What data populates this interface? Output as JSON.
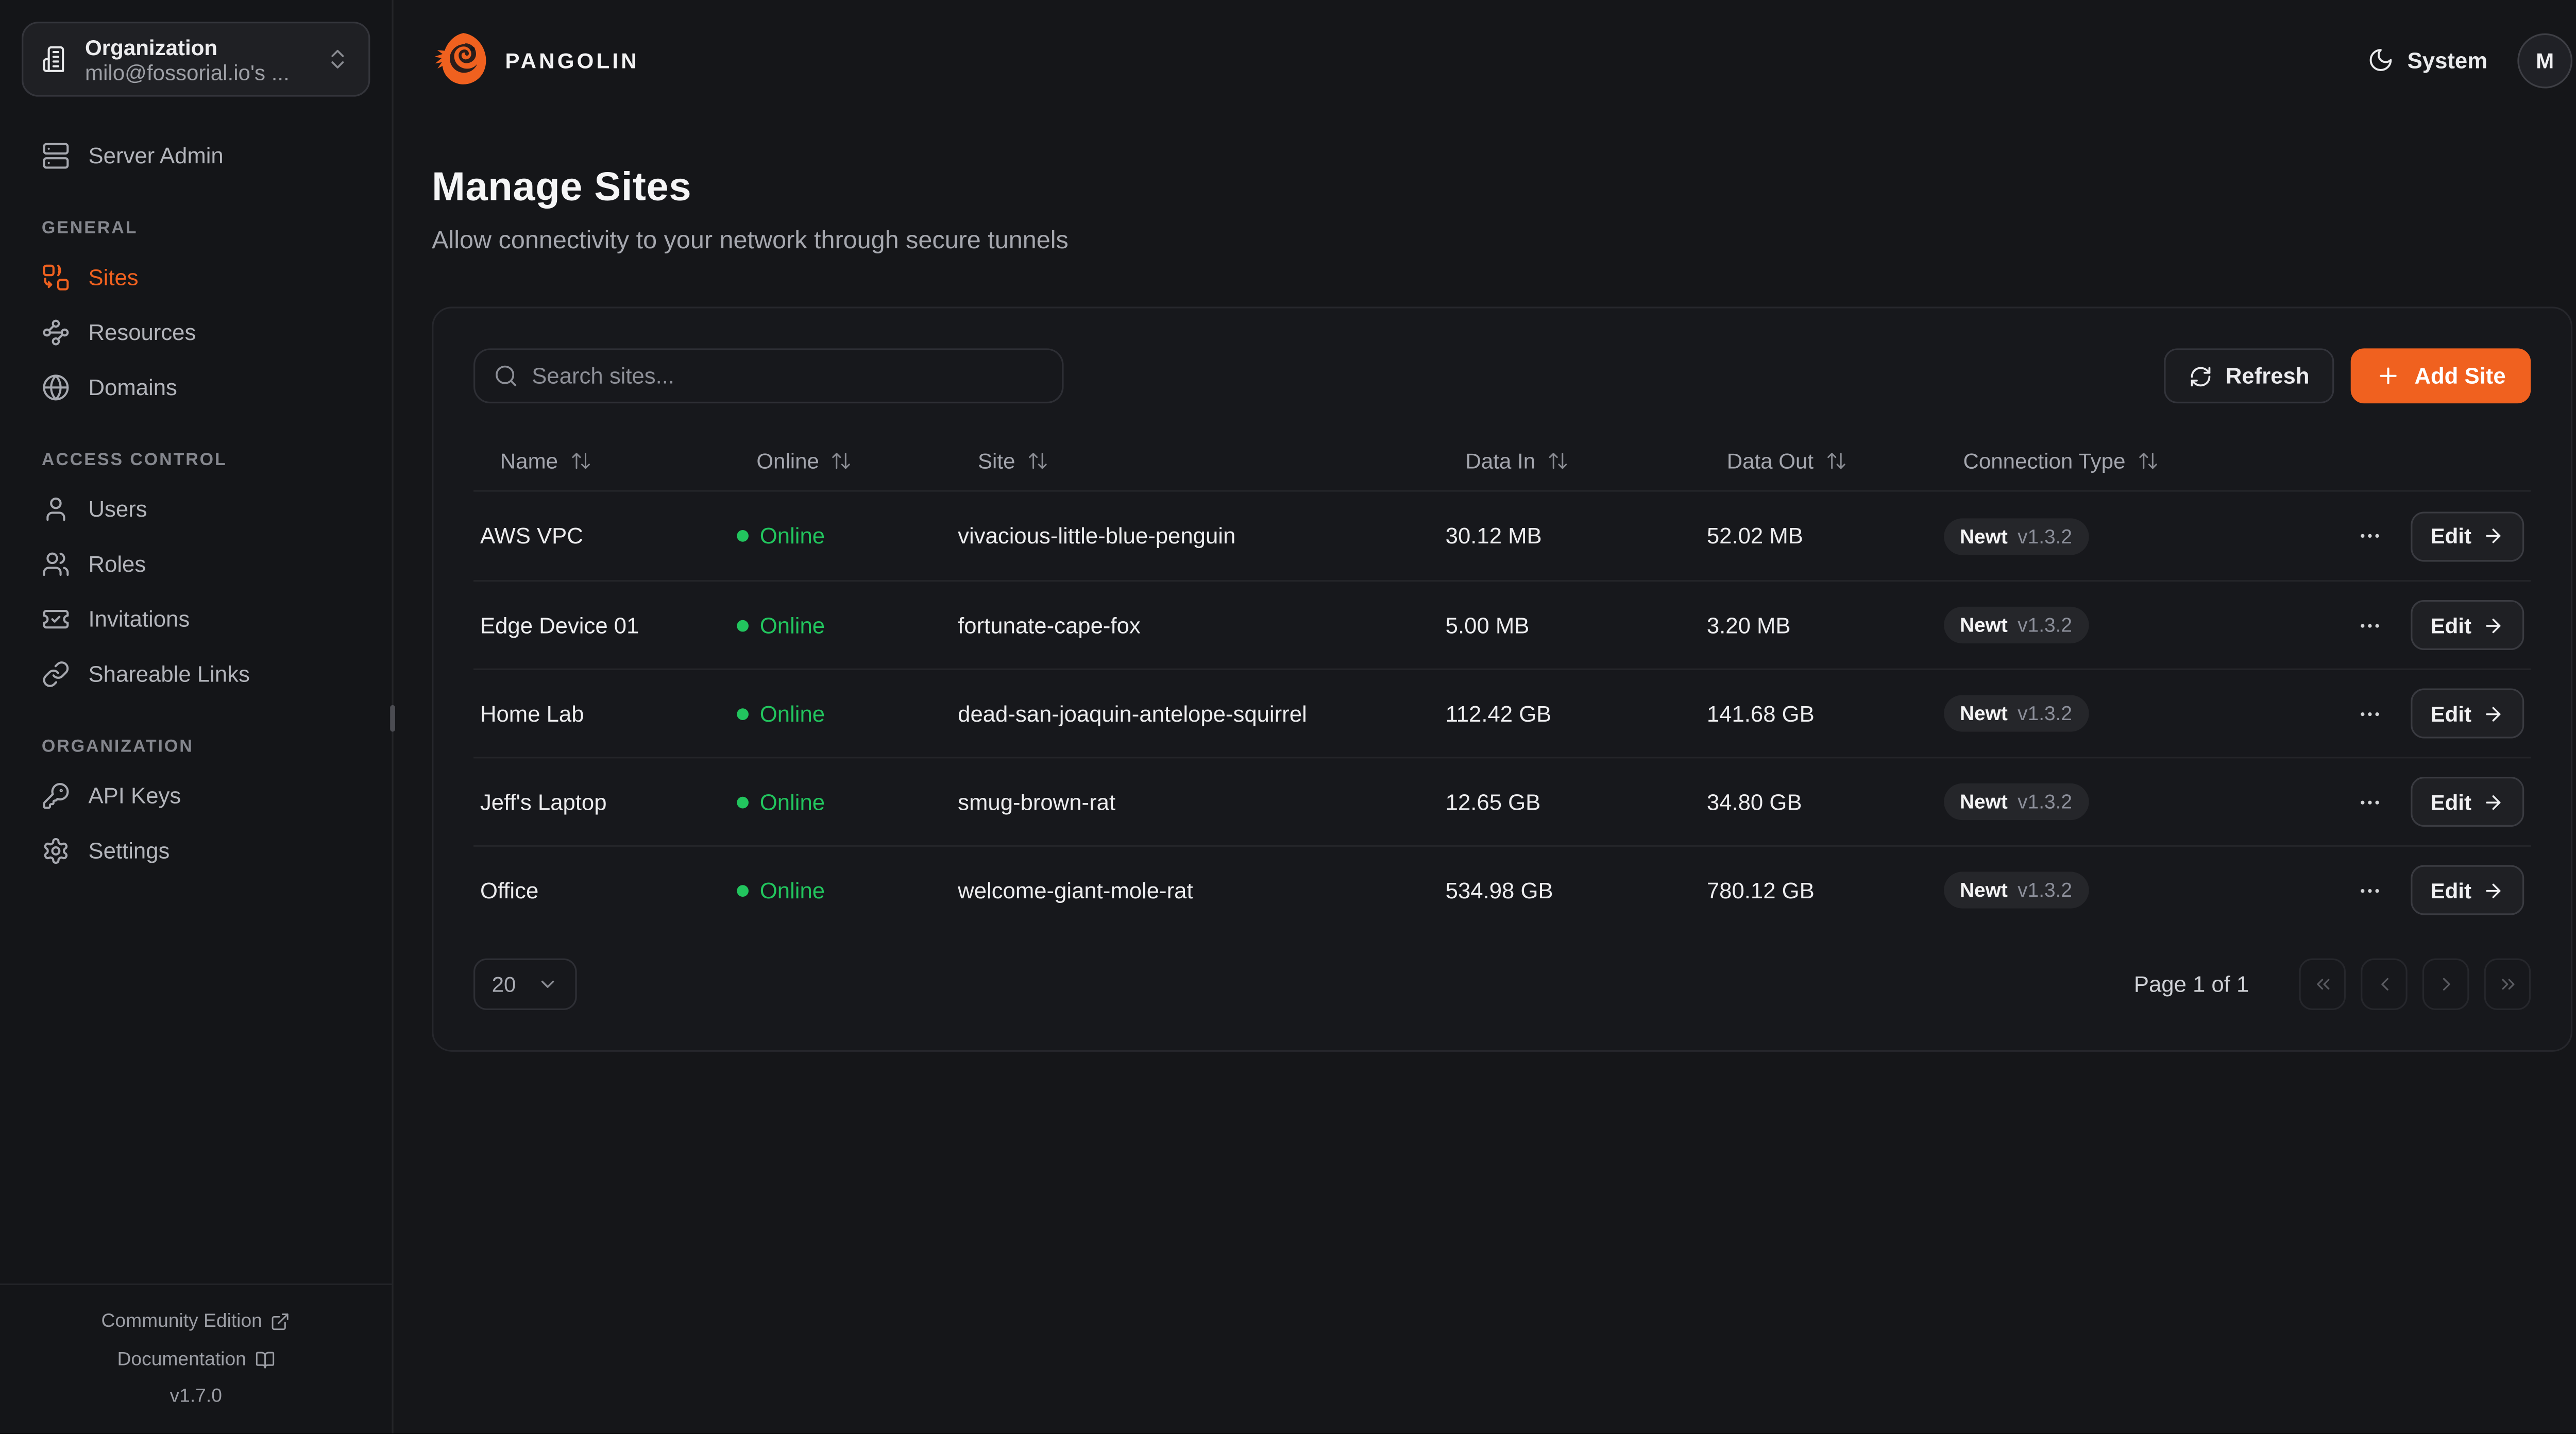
{
  "sidebar": {
    "org": {
      "label": "Organization",
      "value": "milo@fossorial.io's ..."
    },
    "server_admin": "Server Admin",
    "sections": [
      {
        "title": "GENERAL",
        "items": [
          {
            "label": "Sites"
          },
          {
            "label": "Resources"
          },
          {
            "label": "Domains"
          }
        ]
      },
      {
        "title": "ACCESS CONTROL",
        "items": [
          {
            "label": "Users"
          },
          {
            "label": "Roles"
          },
          {
            "label": "Invitations"
          },
          {
            "label": "Shareable Links"
          }
        ]
      },
      {
        "title": "ORGANIZATION",
        "items": [
          {
            "label": "API Keys"
          },
          {
            "label": "Settings"
          }
        ]
      }
    ],
    "footer": {
      "community": "Community Edition",
      "documentation": "Documentation",
      "version": "v1.7.0"
    }
  },
  "topbar": {
    "brand": "PANGOLIN",
    "theme": "System",
    "avatar": "M"
  },
  "page": {
    "title": "Manage Sites",
    "subtitle": "Allow connectivity to your network through secure tunnels"
  },
  "toolbar": {
    "search_placeholder": "Search sites...",
    "refresh_label": "Refresh",
    "add_site_label": "Add Site"
  },
  "table": {
    "columns": [
      "Name",
      "Online",
      "Site",
      "Data In",
      "Data Out",
      "Connection Type"
    ],
    "edit_label": "Edit",
    "rows": [
      {
        "name": "AWS VPC",
        "status": "Online",
        "site": "vivacious-little-blue-penguin",
        "data_in": "30.12 MB",
        "data_out": "52.02 MB",
        "type": "Newt",
        "version": "v1.3.2"
      },
      {
        "name": "Edge Device 01",
        "status": "Online",
        "site": "fortunate-cape-fox",
        "data_in": "5.00 MB",
        "data_out": "3.20 MB",
        "type": "Newt",
        "version": "v1.3.2"
      },
      {
        "name": "Home Lab",
        "status": "Online",
        "site": "dead-san-joaquin-antelope-squirrel",
        "data_in": "112.42 GB",
        "data_out": "141.68 GB",
        "type": "Newt",
        "version": "v1.3.2"
      },
      {
        "name": "Jeff's Laptop",
        "status": "Online",
        "site": "smug-brown-rat",
        "data_in": "12.65 GB",
        "data_out": "34.80 GB",
        "type": "Newt",
        "version": "v1.3.2"
      },
      {
        "name": "Office",
        "status": "Online",
        "site": "welcome-giant-mole-rat",
        "data_in": "534.98 GB",
        "data_out": "780.12 GB",
        "type": "Newt",
        "version": "v1.3.2"
      }
    ]
  },
  "pagination": {
    "page_size": "20",
    "status": "Page 1 of 1"
  },
  "colors": {
    "accent": "#F0611F",
    "online_green": "#22C55E"
  }
}
